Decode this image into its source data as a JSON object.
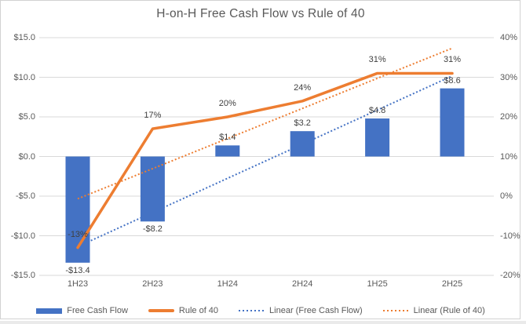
{
  "chart_data": {
    "type": "combo",
    "title": "H-on-H Free Cash Flow vs Rule of 40",
    "categories": [
      "1H23",
      "2H23",
      "1H24",
      "2H24",
      "1H25",
      "2H25"
    ],
    "series": [
      {
        "name": "Free Cash Flow",
        "kind": "bar",
        "axis": "left",
        "values": [
          -13.4,
          -8.2,
          1.4,
          3.2,
          4.8,
          8.6
        ],
        "labels": [
          "-$13.4",
          "-$8.2",
          "$1.4",
          "$3.2",
          "$4.8",
          "$8.6"
        ],
        "color": "#4472C4"
      },
      {
        "name": "Rule of 40",
        "kind": "line",
        "axis": "right",
        "values": [
          -13,
          17,
          20,
          24,
          31,
          31
        ],
        "labels": [
          "-13%",
          "17%",
          "20%",
          "24%",
          "31%",
          "31%"
        ],
        "color": "#ED7D31"
      },
      {
        "name": "Linear (Free Cash Flow)",
        "kind": "trendline",
        "source": "Free Cash Flow",
        "style": "dotted",
        "color": "#4472C4"
      },
      {
        "name": "Linear (Rule of 40)",
        "kind": "trendline",
        "source": "Rule of 40",
        "style": "dotted",
        "color": "#ED7D31"
      }
    ],
    "axes": {
      "left": {
        "min": -15,
        "max": 15,
        "ticks": [
          "$15.0",
          "$10.0",
          "$5.0",
          "$0.0",
          "-$5.0",
          "-$10.0",
          "-$15.0"
        ]
      },
      "right": {
        "min": -20,
        "max": 40,
        "ticks": [
          "40%",
          "30%",
          "20%",
          "10%",
          "0%",
          "-10%",
          "-20%"
        ]
      }
    },
    "grid": true,
    "legend_position": "bottom",
    "legend": [
      "Free Cash Flow",
      "Rule of 40",
      "Linear (Free Cash Flow)",
      "Linear (Rule of 40)"
    ],
    "colors": {
      "gridline": "#D9D9D9",
      "axis_text": "#595959",
      "data_label_text": "#404040",
      "bar_blue": "#4472C4",
      "line_orange": "#ED7D31"
    }
  }
}
